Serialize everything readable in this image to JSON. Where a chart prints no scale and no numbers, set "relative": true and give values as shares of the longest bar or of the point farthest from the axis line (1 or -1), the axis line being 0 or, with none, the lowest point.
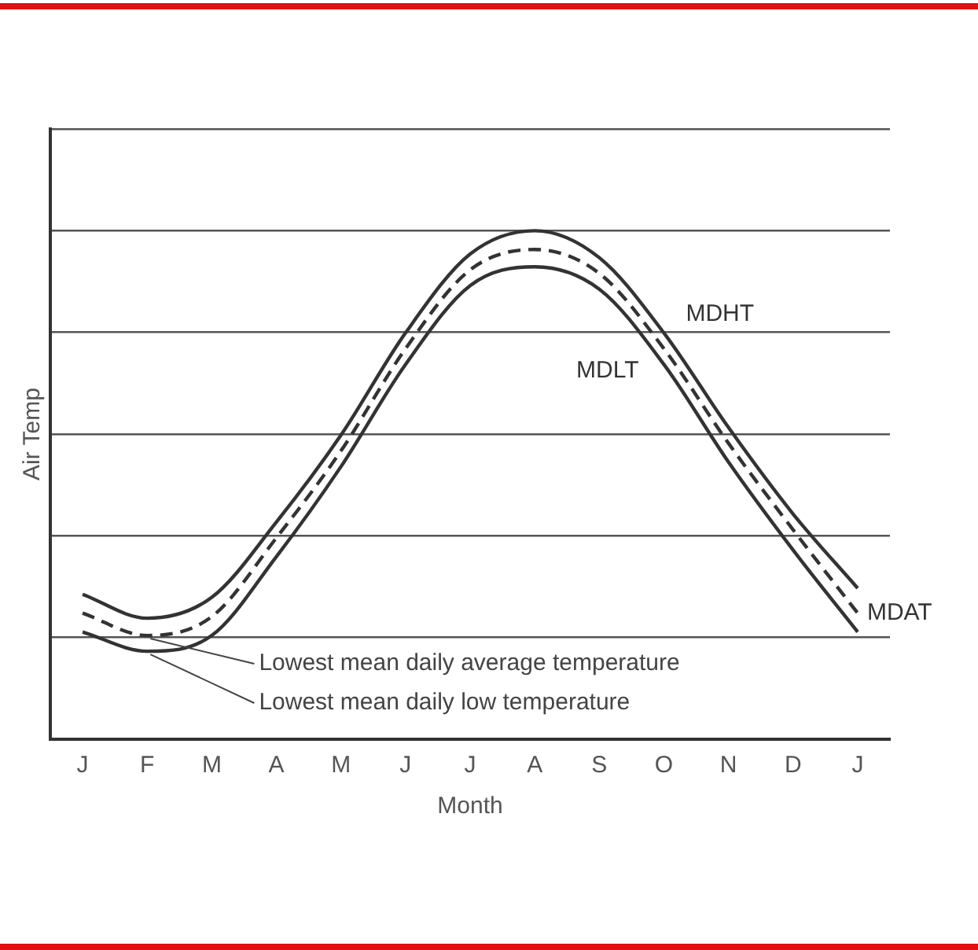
{
  "chart_data": {
    "type": "line",
    "relative": true,
    "xlabel": "Month",
    "ylabel": "Air Temp",
    "categories": [
      "J",
      "F",
      "M",
      "A",
      "M",
      "J",
      "J",
      "A",
      "S",
      "O",
      "N",
      "D",
      "J"
    ],
    "series": [
      {
        "name": "MDHT",
        "color": "#333333",
        "line_style": "solid",
        "values": [
          0.285,
          0.238,
          0.279,
          0.427,
          0.598,
          0.799,
          0.954,
          1.0,
          0.947,
          0.799,
          0.613,
          0.443,
          0.297
        ]
      },
      {
        "name": "MDAT",
        "color": "#333333",
        "line_style": "dashed",
        "values": [
          0.248,
          0.204,
          0.241,
          0.396,
          0.567,
          0.768,
          0.923,
          0.963,
          0.916,
          0.768,
          0.582,
          0.412,
          0.248
        ]
      },
      {
        "name": "MDLT",
        "color": "#333333",
        "line_style": "solid",
        "values": [
          0.211,
          0.173,
          0.204,
          0.359,
          0.536,
          0.737,
          0.892,
          0.929,
          0.885,
          0.737,
          0.545,
          0.372,
          0.211
        ]
      }
    ],
    "annotations": [
      {
        "text": "Lowest mean daily average temperature",
        "x": "F",
        "y": 0.204
      },
      {
        "text": "Lowest mean daily low temperature",
        "x": "F",
        "y": 0.173
      }
    ],
    "grid": "y",
    "legend": false,
    "marker": "none"
  }
}
